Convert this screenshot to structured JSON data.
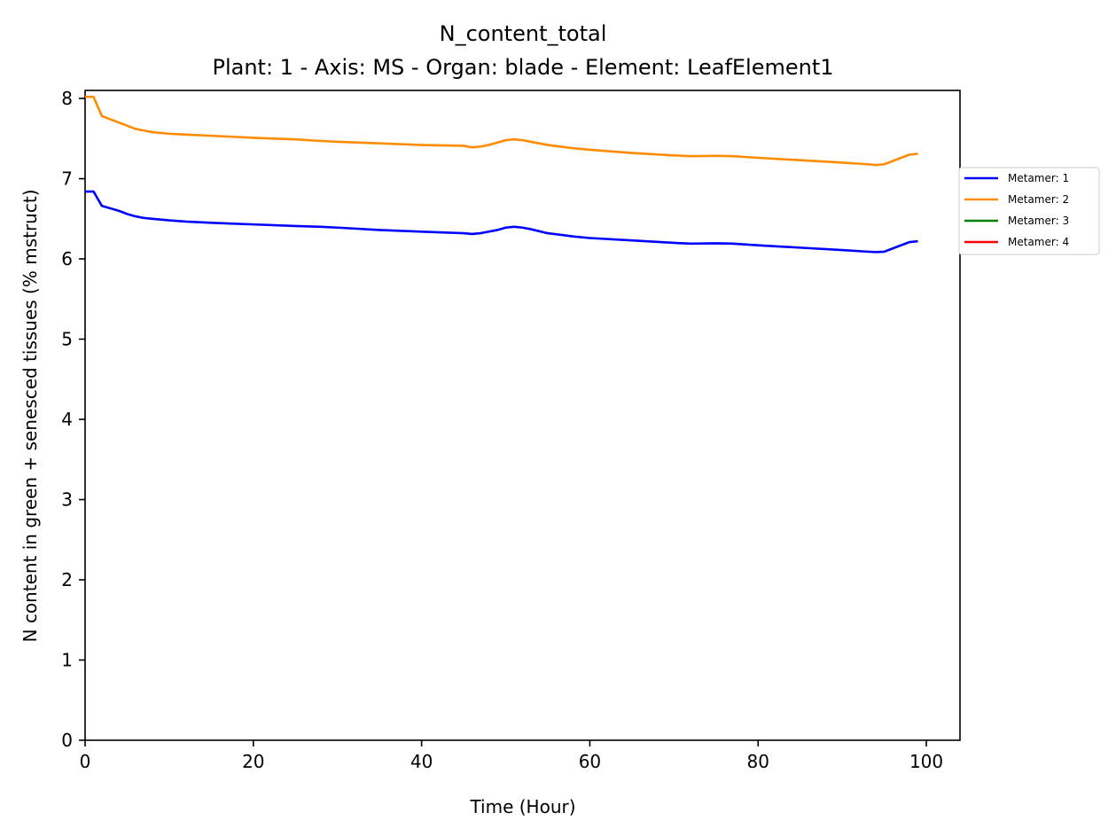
{
  "chart_data": {
    "type": "line",
    "title": "N_content_total",
    "subtitle": "Plant: 1 - Axis: MS - Organ: blade - Element: LeafElement1",
    "xlabel": "Time (Hour)",
    "ylabel": "N content in green + senesced tissues (% mstruct)",
    "xlim": [
      0,
      104
    ],
    "ylim": [
      0,
      8.1
    ],
    "xticks": [
      0,
      20,
      40,
      60,
      80,
      100
    ],
    "yticks": [
      0,
      1,
      2,
      3,
      4,
      5,
      6,
      7,
      8
    ],
    "grid": false,
    "legend_position": "outside-right",
    "series": [
      {
        "name": "Metamer: 1",
        "color": "#0000ff",
        "x": [
          0,
          1,
          2,
          3,
          4,
          5,
          6,
          7,
          8,
          10,
          12,
          15,
          20,
          25,
          28,
          30,
          35,
          40,
          45,
          46,
          47,
          48,
          49,
          50,
          51,
          52,
          53,
          55,
          58,
          60,
          65,
          70,
          72,
          75,
          77,
          80,
          85,
          90,
          93,
          94,
          95,
          96,
          97,
          98,
          99
        ],
        "y": [
          6.84,
          6.84,
          6.66,
          6.63,
          6.6,
          6.56,
          6.53,
          6.51,
          6.5,
          6.48,
          6.465,
          6.45,
          6.43,
          6.41,
          6.4,
          6.39,
          6.36,
          6.34,
          6.32,
          6.31,
          6.32,
          6.34,
          6.36,
          6.39,
          6.4,
          6.39,
          6.37,
          6.32,
          6.28,
          6.26,
          6.23,
          6.2,
          6.19,
          6.195,
          6.19,
          6.17,
          6.14,
          6.11,
          6.09,
          6.085,
          6.09,
          6.13,
          6.17,
          6.21,
          6.22
        ]
      },
      {
        "name": "Metamer: 2",
        "color": "#ff8c00",
        "x": [
          0,
          1,
          2,
          3,
          4,
          5,
          6,
          7,
          8,
          10,
          12,
          15,
          20,
          25,
          28,
          30,
          35,
          40,
          45,
          46,
          47,
          48,
          49,
          50,
          51,
          52,
          53,
          55,
          58,
          60,
          65,
          70,
          72,
          75,
          77,
          80,
          85,
          90,
          93,
          94,
          95,
          96,
          97,
          98,
          99
        ],
        "y": [
          8.02,
          8.02,
          7.78,
          7.74,
          7.7,
          7.66,
          7.62,
          7.6,
          7.58,
          7.56,
          7.55,
          7.535,
          7.51,
          7.49,
          7.47,
          7.46,
          7.44,
          7.42,
          7.41,
          7.39,
          7.4,
          7.42,
          7.45,
          7.48,
          7.49,
          7.48,
          7.46,
          7.42,
          7.38,
          7.36,
          7.32,
          7.29,
          7.28,
          7.285,
          7.28,
          7.26,
          7.23,
          7.2,
          7.18,
          7.17,
          7.18,
          7.22,
          7.26,
          7.3,
          7.31
        ]
      },
      {
        "name": "Metamer: 3",
        "color": "#008000",
        "x": [],
        "y": []
      },
      {
        "name": "Metamer: 4",
        "color": "#ff0000",
        "x": [],
        "y": []
      }
    ]
  }
}
